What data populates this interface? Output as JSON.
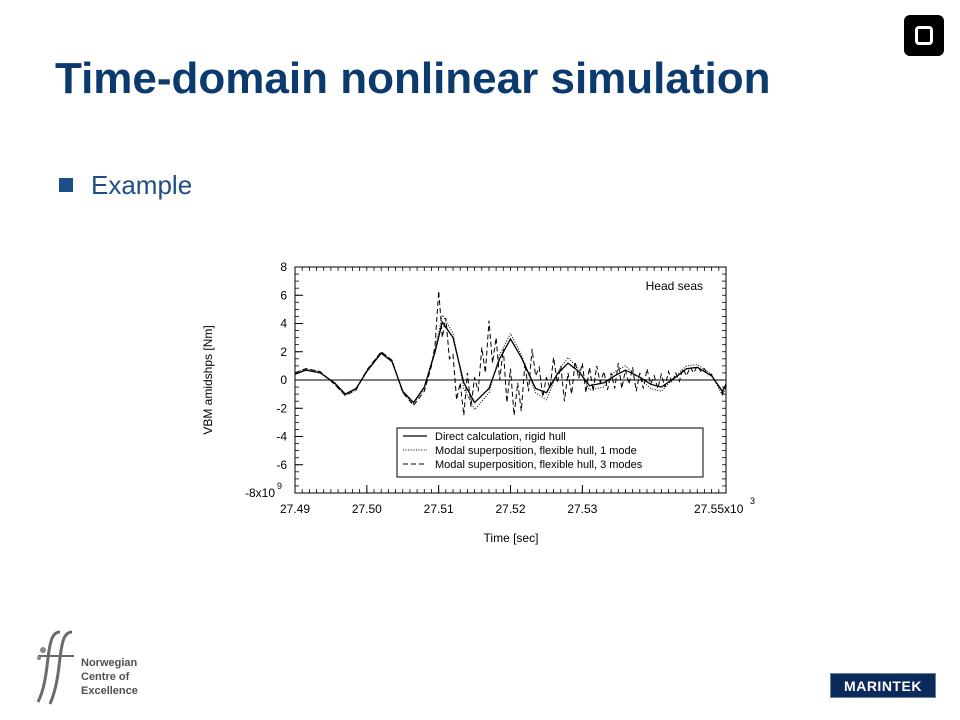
{
  "slide": {
    "title": "Time-domain nonlinear simulation",
    "bullet": "Example"
  },
  "footer": {
    "nce_line1": "Norwegian",
    "nce_line2": "Centre of",
    "nce_line3": "Excellence",
    "brand": "MARINTEK"
  },
  "colors": {
    "title": "#0b3a6e",
    "bullet": "#1a4f88",
    "brand_bg": "#0a2a5c"
  },
  "chart_data": {
    "type": "line",
    "annotation": "Head seas",
    "xlabel": "Time [sec]",
    "ylabel": "VBM amidshps [Nm]",
    "x_unit": "27.55x10",
    "x_unit_exp": "3",
    "y_unit": "-8x10",
    "y_unit_exp": "9",
    "xlim": [
      27.49,
      27.55
    ],
    "ylim": [
      -8,
      8
    ],
    "x_ticks": [
      {
        "value": 27.49,
        "label": "27.49"
      },
      {
        "value": 27.5,
        "label": "27.50"
      },
      {
        "value": 27.51,
        "label": "27.51"
      },
      {
        "value": 27.52,
        "label": "27.52"
      },
      {
        "value": 27.53,
        "label": "27.53"
      }
    ],
    "y_ticks": [
      {
        "value": 8,
        "label": "8"
      },
      {
        "value": 6,
        "label": "6"
      },
      {
        "value": 4,
        "label": "4"
      },
      {
        "value": 2,
        "label": "2"
      },
      {
        "value": 0,
        "label": "0"
      },
      {
        "value": -2,
        "label": "-2"
      },
      {
        "value": -4,
        "label": "-4"
      },
      {
        "value": -6,
        "label": "-6"
      }
    ],
    "legend_position": "bottom-right",
    "series": [
      {
        "name": "Direct calculation, rigid hull",
        "style": "solid",
        "x": [
          27.49,
          27.4915,
          27.4935,
          27.4955,
          27.497,
          27.4985,
          27.5,
          27.502,
          27.5035,
          27.505,
          27.5065,
          27.508,
          27.5095,
          27.5105,
          27.512,
          27.5135,
          27.515,
          27.517,
          27.5185,
          27.52,
          27.5215,
          27.5235,
          27.525,
          27.5265,
          27.528,
          27.5295,
          27.531,
          27.533,
          27.5345,
          27.536,
          27.538,
          27.5395,
          27.541,
          27.543,
          27.5445,
          27.546,
          27.548,
          27.5495,
          27.55
        ],
        "y": [
          0.4,
          0.7,
          0.5,
          -0.2,
          -1.0,
          -0.6,
          0.6,
          1.9,
          1.3,
          -0.8,
          -1.6,
          -0.5,
          2.0,
          4.1,
          3.0,
          -0.2,
          -1.6,
          -0.6,
          1.5,
          2.9,
          1.6,
          -0.6,
          -0.9,
          0.4,
          1.2,
          0.6,
          -0.4,
          -0.2,
          0.3,
          0.7,
          0.2,
          -0.3,
          -0.5,
          0.2,
          0.8,
          0.9,
          0.3,
          -0.8,
          -0.3
        ]
      },
      {
        "name": "Modal superposition, flexible hull, 1 mode",
        "style": "dotted",
        "x": [
          27.49,
          27.4915,
          27.4935,
          27.4955,
          27.497,
          27.4985,
          27.5,
          27.502,
          27.5035,
          27.505,
          27.5065,
          27.508,
          27.5095,
          27.5105,
          27.512,
          27.5135,
          27.515,
          27.517,
          27.5185,
          27.52,
          27.5215,
          27.5235,
          27.525,
          27.5265,
          27.528,
          27.5295,
          27.531,
          27.533,
          27.5345,
          27.536,
          27.538,
          27.5395,
          27.541,
          27.543,
          27.5445,
          27.546,
          27.548,
          27.5495,
          27.55
        ],
        "y": [
          0.5,
          0.8,
          0.6,
          -0.3,
          -1.1,
          -0.7,
          0.7,
          2.0,
          1.4,
          -0.9,
          -1.7,
          -0.6,
          2.2,
          4.6,
          3.3,
          -0.6,
          -2.1,
          -0.9,
          1.8,
          3.3,
          1.8,
          -0.9,
          -1.4,
          0.5,
          1.6,
          0.8,
          -0.7,
          -0.5,
          0.6,
          1.0,
          0.1,
          -0.6,
          -0.8,
          0.3,
          1.0,
          1.1,
          0.4,
          -1.1,
          -0.5
        ]
      },
      {
        "name": "Modal superposition, flexible hull, 3 modes",
        "style": "dashed",
        "x": [
          27.49,
          27.4915,
          27.4935,
          27.4955,
          27.497,
          27.4985,
          27.5,
          27.502,
          27.5035,
          27.505,
          27.5065,
          27.508,
          27.509,
          27.5095,
          27.51,
          27.5105,
          27.511,
          27.5115,
          27.512,
          27.5125,
          27.513,
          27.5135,
          27.514,
          27.5145,
          27.515,
          27.5155,
          27.516,
          27.5165,
          27.517,
          27.5175,
          27.518,
          27.5185,
          27.519,
          27.5195,
          27.52,
          27.5205,
          27.521,
          27.5215,
          27.522,
          27.5225,
          27.523,
          27.5235,
          27.524,
          27.5245,
          27.525,
          27.5255,
          27.526,
          27.5265,
          27.527,
          27.5275,
          27.528,
          27.5285,
          27.529,
          27.5295,
          27.53,
          27.5305,
          27.531,
          27.5315,
          27.532,
          27.5325,
          27.533,
          27.5335,
          27.534,
          27.5345,
          27.535,
          27.5355,
          27.536,
          27.5365,
          27.537,
          27.5375,
          27.538,
          27.5385,
          27.539,
          27.5395,
          27.54,
          27.5405,
          27.541,
          27.5415,
          27.542,
          27.5425,
          27.543,
          27.5435,
          27.544,
          27.5445,
          27.545,
          27.5455,
          27.546,
          27.5465,
          27.547,
          27.5475,
          27.548,
          27.5485,
          27.549,
          27.5495,
          27.55
        ],
        "y": [
          0.5,
          0.8,
          0.6,
          -0.3,
          -1.1,
          -0.7,
          0.7,
          2.0,
          1.4,
          -0.9,
          -1.8,
          -0.8,
          1.0,
          2.5,
          6.3,
          3.0,
          4.4,
          1.5,
          1.8,
          -1.4,
          -0.2,
          -2.5,
          0.5,
          -1.9,
          0.2,
          -0.8,
          2.3,
          0.5,
          4.2,
          1.2,
          3.0,
          0.0,
          2.2,
          -1.6,
          0.8,
          -2.5,
          -0.2,
          -2.2,
          1.2,
          -0.8,
          2.2,
          0.3,
          0.9,
          -1.2,
          0.2,
          -0.6,
          1.6,
          -0.2,
          1.0,
          -1.5,
          0.5,
          -1.0,
          1.3,
          0.1,
          1.2,
          -0.9,
          0.9,
          -0.8,
          1.0,
          -0.2,
          0.6,
          -0.7,
          0.5,
          -0.6,
          1.2,
          -0.6,
          0.7,
          -0.3,
          0.9,
          -0.8,
          0.5,
          -0.6,
          0.8,
          -0.3,
          0.3,
          -0.6,
          0.4,
          -0.5,
          0.6,
          -0.2,
          0.5,
          -0.1,
          0.8,
          0.3,
          0.9,
          0.5,
          1.0,
          0.6,
          0.8,
          0.4,
          0.4,
          -0.1,
          -0.4,
          -1.0,
          -0.3
        ]
      }
    ]
  }
}
